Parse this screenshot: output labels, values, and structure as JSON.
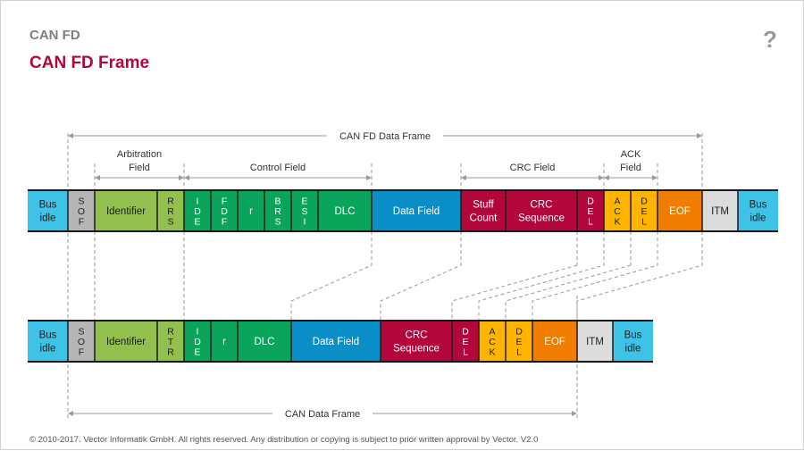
{
  "header": {
    "topic": "CAN FD",
    "title": "CAN FD Frame",
    "help_label": "?"
  },
  "footer": {
    "copyright": "© 2010-2017. Vector Informatik GmbH. All rights reserved. Any distribution or copying is subject to prior written approval by Vector. V2.0"
  },
  "colors": {
    "title": "#b3063b",
    "bus_idle": "#3ec3e6",
    "sof": "#b5b5b5",
    "identifier": "#92c04f",
    "control": "#0aa55b",
    "data_field": "#0a8ec7",
    "crc": "#b3063b",
    "ack": "#ffb400",
    "eof": "#f07d00",
    "itm": "#dcdcdc"
  },
  "fd_frame": {
    "span_label": "CAN FD Data Frame",
    "groups": [
      {
        "key": "arbitration",
        "lines": [
          "Arbitration",
          "Field"
        ]
      },
      {
        "key": "control",
        "lines": [
          "Control Field"
        ]
      },
      {
        "key": "crc",
        "lines": [
          "CRC Field"
        ]
      },
      {
        "key": "ack",
        "lines": [
          "ACK",
          "Field"
        ]
      }
    ],
    "fields": [
      {
        "key": "bus-idle-start",
        "lines": [
          "Bus",
          "idle"
        ],
        "color": "bus_idle"
      },
      {
        "key": "sof",
        "lines": [
          "S",
          "O",
          "F"
        ],
        "color": "sof"
      },
      {
        "key": "identifier",
        "lines": [
          "Identifier"
        ],
        "color": "identifier"
      },
      {
        "key": "rrs",
        "lines": [
          "R",
          "R",
          "S"
        ],
        "color": "identifier"
      },
      {
        "key": "ide",
        "lines": [
          "I",
          "D",
          "E"
        ],
        "color": "control"
      },
      {
        "key": "fdf",
        "lines": [
          "F",
          "D",
          "F"
        ],
        "color": "control"
      },
      {
        "key": "r",
        "lines": [
          "r"
        ],
        "color": "control"
      },
      {
        "key": "brs",
        "lines": [
          "B",
          "R",
          "S"
        ],
        "color": "control"
      },
      {
        "key": "esi",
        "lines": [
          "E",
          "S",
          "I"
        ],
        "color": "control"
      },
      {
        "key": "dlc",
        "lines": [
          "DLC"
        ],
        "color": "control"
      },
      {
        "key": "data-field",
        "lines": [
          "Data Field"
        ],
        "color": "data_field"
      },
      {
        "key": "stuff-count",
        "lines": [
          "Stuff",
          "Count"
        ],
        "color": "crc"
      },
      {
        "key": "crc-sequence",
        "lines": [
          "CRC",
          "Sequence"
        ],
        "color": "crc"
      },
      {
        "key": "crc-del",
        "lines": [
          "D",
          "E",
          "L"
        ],
        "color": "crc"
      },
      {
        "key": "ack-slot",
        "lines": [
          "A",
          "C",
          "K"
        ],
        "color": "ack"
      },
      {
        "key": "ack-del",
        "lines": [
          "D",
          "E",
          "L"
        ],
        "color": "ack"
      },
      {
        "key": "eof",
        "lines": [
          "EOF"
        ],
        "color": "eof"
      },
      {
        "key": "itm",
        "lines": [
          "ITM"
        ],
        "color": "itm"
      },
      {
        "key": "bus-idle-end",
        "lines": [
          "Bus",
          "idle"
        ],
        "color": "bus_idle"
      }
    ]
  },
  "classic_frame": {
    "span_label": "CAN Data Frame",
    "fields": [
      {
        "key": "bus-idle-start",
        "lines": [
          "Bus",
          "idle"
        ],
        "color": "bus_idle"
      },
      {
        "key": "sof",
        "lines": [
          "S",
          "O",
          "F"
        ],
        "color": "sof"
      },
      {
        "key": "identifier",
        "lines": [
          "Identifier"
        ],
        "color": "identifier"
      },
      {
        "key": "rtr",
        "lines": [
          "R",
          "T",
          "R"
        ],
        "color": "identifier"
      },
      {
        "key": "ide",
        "lines": [
          "I",
          "D",
          "E"
        ],
        "color": "control"
      },
      {
        "key": "r",
        "lines": [
          "r"
        ],
        "color": "control"
      },
      {
        "key": "dlc",
        "lines": [
          "DLC"
        ],
        "color": "control"
      },
      {
        "key": "data-field",
        "lines": [
          "Data Field"
        ],
        "color": "data_field"
      },
      {
        "key": "crc-sequence",
        "lines": [
          "CRC",
          "Sequence"
        ],
        "color": "crc"
      },
      {
        "key": "crc-del",
        "lines": [
          "D",
          "E",
          "L"
        ],
        "color": "crc"
      },
      {
        "key": "ack-slot",
        "lines": [
          "A",
          "C",
          "K"
        ],
        "color": "ack"
      },
      {
        "key": "ack-del",
        "lines": [
          "D",
          "E",
          "L"
        ],
        "color": "ack"
      },
      {
        "key": "eof",
        "lines": [
          "EOF"
        ],
        "color": "eof"
      },
      {
        "key": "itm",
        "lines": [
          "ITM"
        ],
        "color": "itm"
      },
      {
        "key": "bus-idle-end",
        "lines": [
          "Bus",
          "idle"
        ],
        "color": "bus_idle"
      }
    ]
  }
}
